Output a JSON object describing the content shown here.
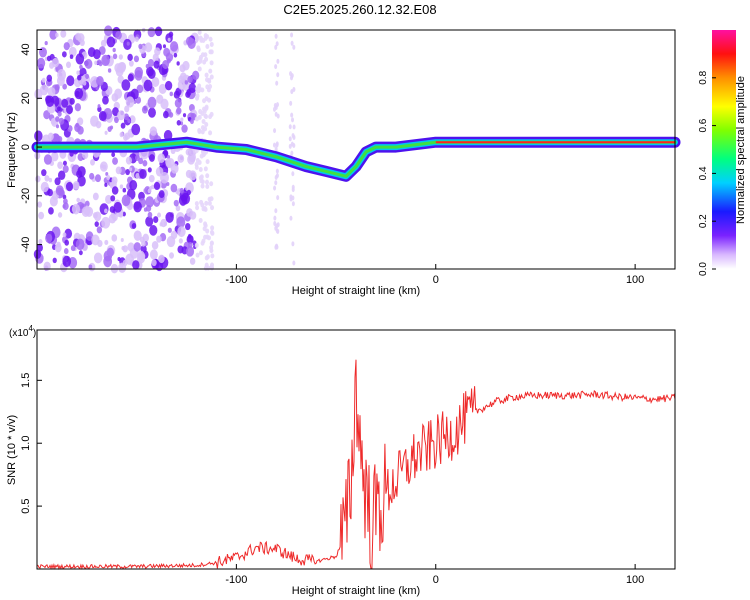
{
  "title": "C2E5.2025.260.12.32.E08",
  "chart_data": [
    {
      "type": "heatmap",
      "xlabel": "Height of straight line (km)",
      "ylabel": "Frequency (Hz)",
      "xlim": [
        -200,
        120
      ],
      "ylim": [
        -50,
        48
      ],
      "xticks": [
        -100,
        0,
        100
      ],
      "yticks": [
        -40,
        -20,
        0,
        20,
        40
      ],
      "colorbar": {
        "label": "Normalized spectral amplitude",
        "range": [
          0,
          1
        ],
        "ticks": [
          "0.0",
          "0.2",
          "0.4",
          "0.6",
          "0.8"
        ]
      },
      "ridge": [
        {
          "x": -200,
          "y": 0
        },
        {
          "x": -150,
          "y": 0
        },
        {
          "x": -125,
          "y": 2
        },
        {
          "x": -110,
          "y": 0
        },
        {
          "x": -95,
          "y": -1
        },
        {
          "x": -80,
          "y": -4
        },
        {
          "x": -65,
          "y": -8
        },
        {
          "x": -55,
          "y": -10
        },
        {
          "x": -45,
          "y": -12
        },
        {
          "x": -40,
          "y": -8
        },
        {
          "x": -35,
          "y": -2
        },
        {
          "x": -30,
          "y": 0
        },
        {
          "x": -20,
          "y": 0
        },
        {
          "x": 0,
          "y": 2
        },
        {
          "x": 50,
          "y": 2
        },
        {
          "x": 100,
          "y": 2
        },
        {
          "x": 120,
          "y": 2
        }
      ]
    },
    {
      "type": "line",
      "xlabel": "Height of straight line (km)",
      "ylabel": "SNR (10 * v/v)",
      "y_multiplier": "(x10",
      "y_exponent": "4",
      "xlim": [
        -200,
        120
      ],
      "ylim": [
        0,
        1.9
      ],
      "xticks": [
        -100,
        0,
        100
      ],
      "yticks": [
        "0.5",
        "1.0",
        "1.5"
      ],
      "color": "#ee2a2a",
      "series": [
        {
          "name": "SNR",
          "x": [
            -200,
            -150,
            -120,
            -110,
            -100,
            -90,
            -80,
            -70,
            -60,
            -50,
            -45,
            -42,
            -40,
            -38,
            -35,
            -32,
            -30,
            -25,
            -20,
            -15,
            -10,
            -5,
            0,
            5,
            10,
            15,
            20,
            30,
            40,
            50,
            60,
            70,
            80,
            90,
            100,
            110,
            120
          ],
          "y": [
            0.02,
            0.02,
            0.03,
            0.05,
            0.09,
            0.17,
            0.16,
            0.08,
            0.06,
            0.1,
            0.3,
            0.8,
            1.5,
            1.0,
            0.6,
            0.3,
            0.45,
            0.6,
            0.7,
            0.8,
            0.9,
            0.95,
            1.0,
            1.05,
            1.1,
            1.2,
            1.25,
            1.33,
            1.37,
            1.38,
            1.38,
            1.38,
            1.39,
            1.37,
            1.36,
            1.35,
            1.36
          ]
        }
      ]
    }
  ]
}
